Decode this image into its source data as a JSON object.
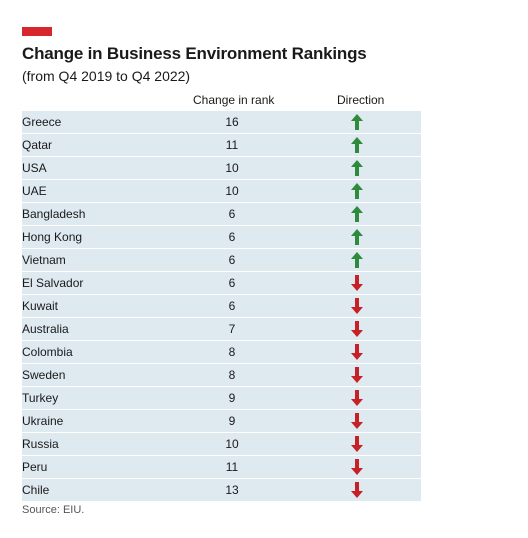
{
  "colors": {
    "accent": "#d7262c",
    "up": "#2e8b3b",
    "down": "#c62126",
    "row_bg": "#dfe9f0"
  },
  "chart_data": {
    "type": "table",
    "title": "Change in Business Environment Rankings",
    "subtitle": "(from Q4 2019 to Q4 2022)",
    "columns": [
      "Change in rank",
      "Direction"
    ],
    "rows": [
      {
        "country": "Greece",
        "change": "16",
        "direction": "up"
      },
      {
        "country": "Qatar",
        "change": "11",
        "direction": "up"
      },
      {
        "country": "USA",
        "change": "10",
        "direction": "up"
      },
      {
        "country": "UAE",
        "change": "10",
        "direction": "up"
      },
      {
        "country": "Bangladesh",
        "change": "6",
        "direction": "up"
      },
      {
        "country": "Hong Kong",
        "change": "6",
        "direction": "up"
      },
      {
        "country": "Vietnam",
        "change": "6",
        "direction": "up"
      },
      {
        "country": "El Salvador",
        "change": "6",
        "direction": "down"
      },
      {
        "country": "Kuwait",
        "change": "6",
        "direction": "down"
      },
      {
        "country": "Australia",
        "change": "7",
        "direction": "down"
      },
      {
        "country": "Colombia",
        "change": "8",
        "direction": "down"
      },
      {
        "country": "Sweden",
        "change": "8",
        "direction": "down"
      },
      {
        "country": "Turkey",
        "change": "9",
        "direction": "down"
      },
      {
        "country": "Ukraine",
        "change": "9",
        "direction": "down"
      },
      {
        "country": "Russia",
        "change": "10",
        "direction": "down"
      },
      {
        "country": "Peru",
        "change": "11",
        "direction": "down"
      },
      {
        "country": "Chile",
        "change": "13",
        "direction": "down"
      }
    ],
    "source": "Source: EIU."
  }
}
